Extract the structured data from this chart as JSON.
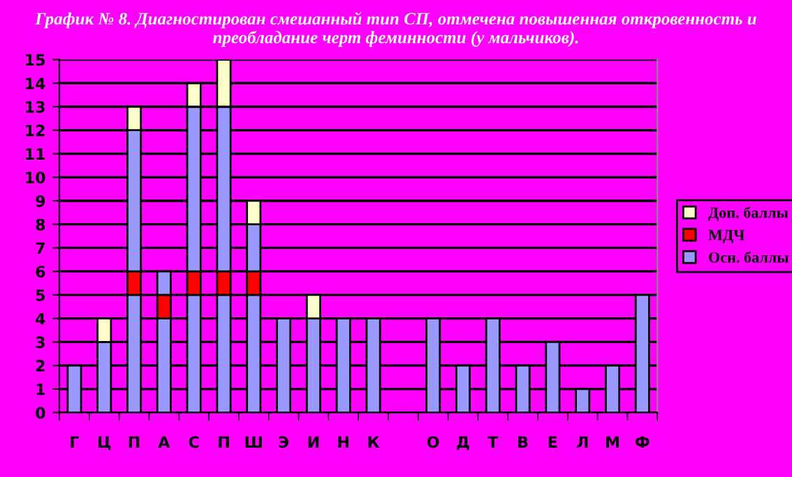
{
  "chart_data": {
    "type": "bar",
    "stacked": true,
    "title": "График № 8. Диагностирован смешанный тип СП, отмечена повышенная откровенность и преобладание черт феминности (у мальчиков).",
    "categories": [
      "Г",
      "Ц",
      "П",
      "А",
      "С",
      "П",
      "Ш",
      "Э",
      "И",
      "Н",
      "К",
      null,
      "О",
      "Д",
      "Т",
      "В",
      "Е",
      "Л",
      "М",
      "Ф"
    ],
    "series": [
      {
        "name": "Осн. баллы",
        "color": "#9999ff",
        "values": [
          2,
          3,
          5,
          4,
          5,
          5,
          5,
          4,
          4,
          4,
          4,
          null,
          4,
          2,
          4,
          2,
          3,
          1,
          2,
          5
        ]
      },
      {
        "name": "МДЧ",
        "color": "#ff0000",
        "values": [
          null,
          null,
          1,
          1,
          1,
          1,
          1,
          null,
          null,
          null,
          null,
          null,
          null,
          null,
          null,
          null,
          null,
          null,
          null,
          null
        ]
      },
      {
        "color": "#9999ff",
        "values": [
          null,
          null,
          6,
          1,
          7,
          7,
          2,
          null,
          null,
          null,
          null,
          null,
          null,
          null,
          null,
          null,
          null,
          null,
          null,
          null
        ]
      },
      {
        "name": "Доп. баллы",
        "color": "#ffffcc",
        "values": [
          null,
          1,
          1,
          null,
          1,
          2,
          1,
          null,
          1,
          null,
          null,
          null,
          null,
          null,
          null,
          null,
          null,
          null,
          null,
          null
        ]
      }
    ],
    "ylim": [
      0,
      15
    ],
    "yticks": [
      0,
      1,
      2,
      3,
      4,
      5,
      6,
      7,
      8,
      9,
      10,
      11,
      12,
      13,
      14,
      15
    ],
    "grid": "y",
    "legend": "right"
  }
}
